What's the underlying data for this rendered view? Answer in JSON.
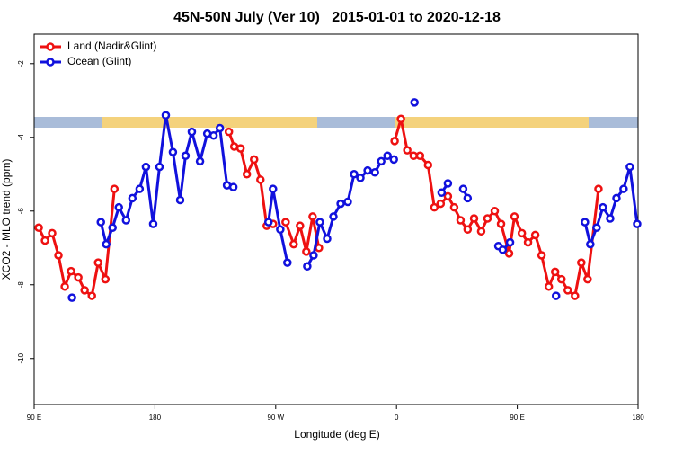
{
  "chart_data": {
    "type": "line",
    "title": "45N-50N July (Ver 10)   2015-01-01 to 2020-12-18",
    "x_label": "Longitude (deg E)",
    "y_label": "XCO2 - MLO trend (ppm)",
    "xlim": [
      90,
      540
    ],
    "xticks": [
      {
        "value": 90,
        "label": "90 E"
      },
      180,
      {
        "value": 270,
        "label": "90 W"
      },
      {
        "value": 360,
        "label": "0"
      },
      {
        "value": 450,
        "label": "90 E"
      },
      {
        "value": 540,
        "label": "180"
      }
    ],
    "ylim": [
      -11.25,
      -1.2
    ],
    "yticks": [
      -2,
      -4,
      -6,
      -8,
      -10
    ],
    "grid": false,
    "legend": "top-left",
    "series": [
      {
        "name": "Land (Nadir&Glint)",
        "color": "#ee1111",
        "x": [
          93.4,
          98.1,
          103.4,
          108.1,
          112.8,
          117.5,
          122.9,
          127.6,
          133.0,
          137.7,
          143.1,
          149.8,
          null,
          235.1,
          239.1,
          243.8,
          248.5,
          253.9,
          258.6,
          263.3,
          268.0,
          null,
          277.4,
          283.4,
          288.1,
          292.8,
          297.5,
          302.2,
          null,
          358.6,
          363.3,
          368.0,
          372.8,
          377.5,
          383.5,
          388.2,
          392.9,
          398.3,
          403.0,
          407.7,
          413.0,
          417.8,
          423.1,
          427.8,
          433.2,
          437.9,
          443.9,
          447.9,
          453.4,
          458.0,
          463.4,
          468.1,
          473.5,
          478.2,
          482.9,
          487.6,
          493.0,
          497.7,
          502.4,
          510.5
        ],
        "values": [
          -6.45,
          -6.8,
          -6.6,
          -7.2,
          -8.05,
          -7.63,
          -7.8,
          -8.15,
          -8.3,
          -7.4,
          -7.85,
          -5.4,
          null,
          -3.85,
          -4.25,
          -4.3,
          -5.0,
          -4.6,
          -5.15,
          -6.4,
          -6.35,
          null,
          -6.3,
          -6.9,
          -6.4,
          -7.1,
          -6.15,
          -7.0,
          null,
          -4.1,
          -3.5,
          -4.35,
          -4.5,
          -4.5,
          -4.75,
          -5.9,
          -5.8,
          -5.6,
          -5.9,
          -6.25,
          -6.5,
          -6.2,
          -6.55,
          -6.2,
          -6.0,
          -6.35,
          -7.15,
          -6.15,
          -6.6,
          -6.85,
          -6.65,
          -7.2,
          -8.05,
          -7.65,
          -7.85,
          -8.15,
          -8.3,
          -7.4,
          -7.85,
          -5.4
        ]
      },
      {
        "name": "Ocean (Glint)",
        "color": "#1111dd",
        "x": [
          118.2,
          null,
          139.7,
          143.7,
          148.4,
          153.1,
          158.5,
          163.2,
          168.6,
          173.3,
          178.7,
          183.4,
          188.1,
          193.4,
          198.8,
          202.8,
          207.5,
          213.6,
          219.0,
          223.7,
          228.4,
          233.7,
          238.4,
          null,
          264.6,
          268.0,
          273.4,
          278.7,
          null,
          293.5,
          298.2,
          302.9,
          308.3,
          313.0,
          318.4,
          323.7,
          328.4,
          333.1,
          338.5,
          343.9,
          348.6,
          353.3,
          358.0,
          null,
          373.4,
          null,
          393.6,
          398.3,
          null,
          409.7,
          413.0,
          null,
          435.9,
          439.2,
          444.6,
          null,
          478.9,
          null,
          500.4,
          504.4,
          509.1,
          513.8,
          519.2,
          523.9,
          529.2,
          533.9,
          539.3
        ],
        "values": [
          -8.35,
          null,
          -6.3,
          -6.9,
          -6.45,
          -5.9,
          -6.25,
          -5.65,
          -5.4,
          -4.8,
          -6.35,
          -4.8,
          -3.4,
          -4.4,
          -5.7,
          -4.5,
          -3.85,
          -4.65,
          -3.9,
          -3.95,
          -3.75,
          -5.3,
          -5.35,
          null,
          -6.3,
          -5.4,
          -6.5,
          -7.4,
          null,
          -7.5,
          -7.2,
          -6.3,
          -6.75,
          -6.15,
          -5.8,
          -5.75,
          -5.0,
          -5.1,
          -4.9,
          -4.95,
          -4.65,
          -4.5,
          -4.6,
          null,
          -3.05,
          null,
          -5.5,
          -5.25,
          null,
          -5.4,
          -5.65,
          null,
          -6.95,
          -7.05,
          -6.85,
          null,
          -8.3,
          null,
          -6.3,
          -6.9,
          -6.45,
          -5.9,
          -6.2,
          -5.65,
          -5.4,
          -4.8,
          -6.35
        ]
      }
    ]
  }
}
